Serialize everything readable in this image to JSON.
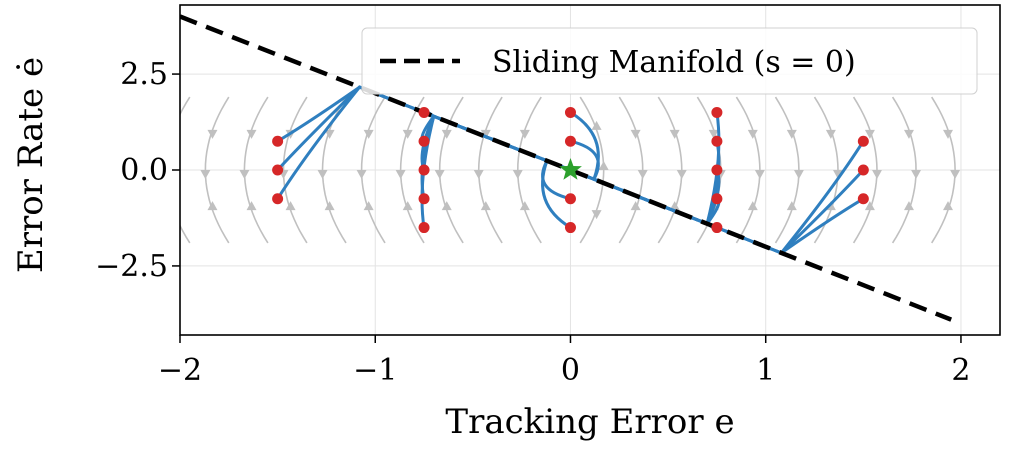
{
  "chart_data": {
    "type": "line",
    "xlabel": "Tracking Error e",
    "ylabel": "Error Rate ė",
    "xlim": [
      -2,
      2.2
    ],
    "ylim": [
      -4.3,
      4.3
    ],
    "x_ticks": [
      -2,
      -1,
      0,
      1,
      2
    ],
    "x_tick_labels": [
      "−2",
      "−1",
      "0",
      "1",
      "2"
    ],
    "y_ticks": [
      2.5,
      0.0,
      -2.5
    ],
    "y_tick_labels": [
      "2.5",
      "0.0",
      "−2.5"
    ],
    "grid": true,
    "legend": {
      "placement": "top-right",
      "entries": [
        "Sliding Manifold (s = 0)"
      ]
    },
    "sliding_manifold": {
      "slope": -2.0,
      "intercept": 0.0,
      "style": "dashed",
      "color": "#000000"
    },
    "initial_points": [
      [
        -1.5,
        0.75
      ],
      [
        -1.5,
        0.0
      ],
      [
        -1.5,
        -0.75
      ],
      [
        -0.75,
        1.5
      ],
      [
        -0.75,
        0.75
      ],
      [
        -0.75,
        0.0
      ],
      [
        -0.75,
        -0.75
      ],
      [
        -0.75,
        -1.5
      ],
      [
        0.0,
        1.5
      ],
      [
        0.0,
        0.75
      ],
      [
        0.0,
        -0.75
      ],
      [
        0.0,
        -1.5
      ],
      [
        0.75,
        1.5
      ],
      [
        0.75,
        0.75
      ],
      [
        0.75,
        0.0
      ],
      [
        0.75,
        -0.75
      ],
      [
        0.75,
        -1.5
      ],
      [
        1.5,
        0.75
      ],
      [
        1.5,
        0.0
      ],
      [
        1.5,
        -0.75
      ]
    ],
    "equilibrium": [
      0.0,
      0.0
    ],
    "colors": {
      "trajectory": "#2f7fbf",
      "initial_point": "#d62728",
      "equilibrium": "#2ca02c",
      "streamline": "#c0c0c0",
      "manifold": "#000000"
    }
  }
}
